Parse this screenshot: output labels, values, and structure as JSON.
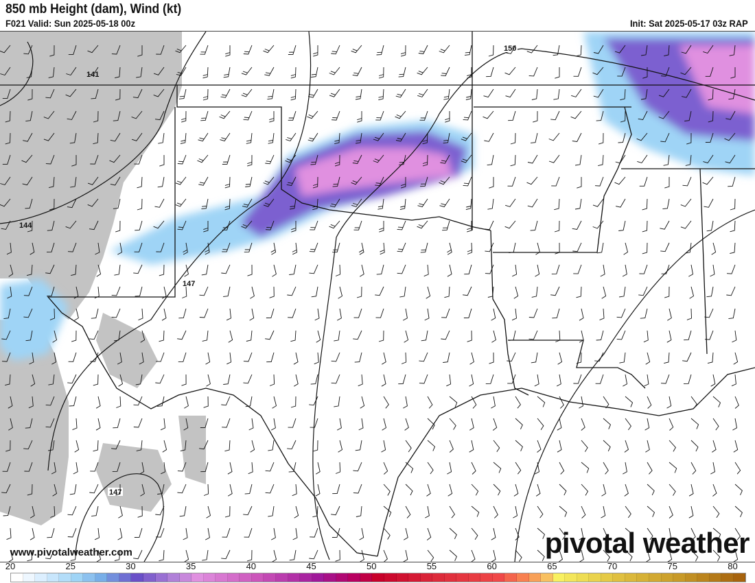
{
  "header": {
    "title": "850 mb Height (dam), Wind (kt)",
    "valid": "F021 Valid: Sun 2025-05-18 00z",
    "init": "Init: Sat 2025-05-17 03z RAP"
  },
  "map": {
    "height_contour_labels": [
      "141",
      "144",
      "147",
      "150",
      "147"
    ],
    "terrain_color": "#c3c3c3",
    "wind_shading_units": "kt"
  },
  "footer": {
    "website": "www.pivotalweather.com",
    "logo": "pivotal weather"
  },
  "colorbar": {
    "min": 20,
    "max": 81,
    "tick_labels": [
      "20",
      "25",
      "30",
      "35",
      "40",
      "45",
      "50",
      "55",
      "60",
      "65",
      "70",
      "75",
      "80"
    ],
    "color_stops": [
      [
        20,
        "#ffffff"
      ],
      [
        22,
        "#dcefff"
      ],
      [
        25,
        "#9fd4f6"
      ],
      [
        27,
        "#78aee8"
      ],
      [
        30,
        "#6a50c8"
      ],
      [
        33,
        "#b080d8"
      ],
      [
        35,
        "#e090e0"
      ],
      [
        40,
        "#cc55bb"
      ],
      [
        45,
        "#a0189a"
      ],
      [
        48,
        "#b80060"
      ],
      [
        50,
        "#c8002a"
      ],
      [
        55,
        "#dd2a3a"
      ],
      [
        60,
        "#f04848"
      ],
      [
        62,
        "#f88050"
      ],
      [
        64,
        "#f8c060"
      ],
      [
        65,
        "#f8f060"
      ],
      [
        70,
        "#e0c040"
      ],
      [
        75,
        "#c89a28"
      ],
      [
        81,
        "#a05808"
      ]
    ]
  }
}
